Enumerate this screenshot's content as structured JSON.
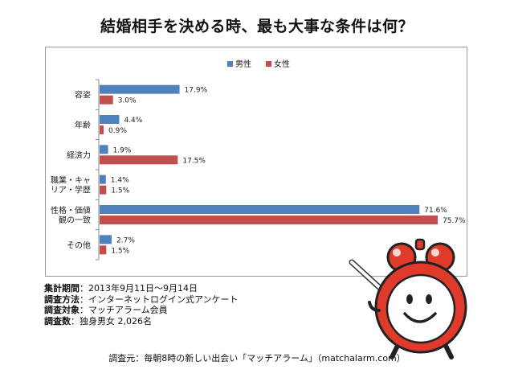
{
  "title": "結婚相手を決める時、最も大事な条件は何？",
  "chart_data": {
    "type": "bar",
    "orientation": "horizontal",
    "categories": [
      [
        "容姿"
      ],
      [
        "年齢"
      ],
      [
        "経済力"
      ],
      [
        "職業・キャ",
        "リア・学歴"
      ],
      [
        "性格・価値",
        "観の一致"
      ],
      [
        "その他"
      ]
    ],
    "series": [
      {
        "name": "男性",
        "color": "#4f81bd",
        "values": [
          17.9,
          4.4,
          1.9,
          1.4,
          71.6,
          2.7
        ],
        "labels": [
          "17.9%",
          "4.4%",
          "1.9%",
          "1.4%",
          "71.6%",
          "2.7%"
        ]
      },
      {
        "name": "女性",
        "color": "#c0504d",
        "values": [
          3.0,
          0.9,
          17.5,
          1.5,
          75.7,
          1.5
        ],
        "labels": [
          "3.0%",
          "0.9%",
          "17.5%",
          "1.5%",
          "75.7%",
          "1.5%"
        ]
      }
    ],
    "xlim": [
      0,
      80
    ],
    "legend": "top-center",
    "grid": false
  },
  "notes": [
    {
      "label": "集計期間",
      "value": "：2013年9月11日〜9月14日"
    },
    {
      "label": "調査方法",
      "value": "：インターネットログイン式アンケート"
    },
    {
      "label": "調査対象",
      "value": "：マッチアラーム会員"
    },
    {
      "label": "調査数",
      "value": "：独身男女 2,026名"
    }
  ],
  "source": "調査元：毎朝8時の新しい出会い「マッチアラーム」（matchalarm.com）",
  "colors": {
    "male": "#4f81bd",
    "female": "#c0504d",
    "mascot_red": "#e03a2a"
  }
}
